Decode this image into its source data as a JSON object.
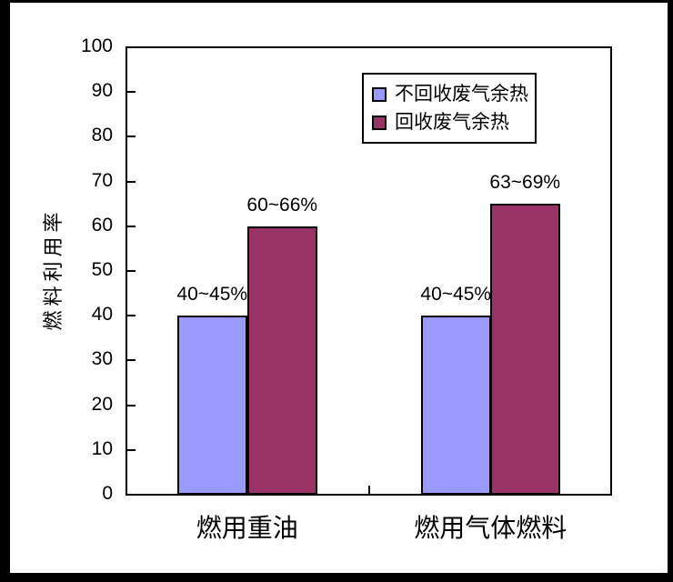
{
  "chart_data": {
    "type": "bar",
    "categories": [
      "燃用重油",
      "燃用气体燃料"
    ],
    "series": [
      {
        "name": "不回收废气余热",
        "color": "#9999FF",
        "values": [
          40,
          40
        ],
        "data_labels": [
          "40~45%",
          "40~45%"
        ]
      },
      {
        "name": "回收废气余热",
        "color": "#993366",
        "values": [
          60,
          65
        ],
        "data_labels": [
          "60~66%",
          "63~69%"
        ]
      }
    ],
    "title": "",
    "xlabel": "",
    "ylabel": "燃料利用率",
    "ylim": [
      0,
      100
    ],
    "yticks": [
      0,
      10,
      20,
      30,
      40,
      50,
      60,
      70,
      80,
      90,
      100
    ],
    "grid": false,
    "legend_position": "top-right-inside",
    "plot_background": "#FFFFFF",
    "frame_color": "#000000",
    "axis_color": "#000000"
  }
}
